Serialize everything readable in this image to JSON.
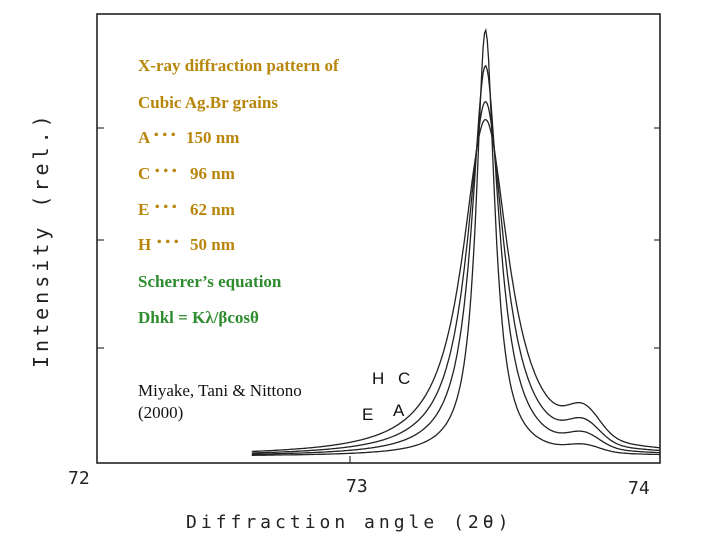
{
  "chart_data": {
    "type": "line",
    "title": "X-ray diffraction pattern of",
    "subtitle": "Cubic Ag.Br grains",
    "xlabel": "Diffraction angle (2θ)",
    "ylabel": "Intensity (rel.)",
    "x_ticks": [
      "72",
      "73",
      "74"
    ],
    "xlim": [
      72,
      74
    ],
    "ylim": [
      0,
      1
    ],
    "legend": [
      {
        "key": "A",
        "dots": "･･･",
        "value": "150 nm",
        "color": "#b8860b"
      },
      {
        "key": "C",
        "dots": "･･･",
        "value": "96 nm",
        "color": "#b8860b"
      },
      {
        "key": "E",
        "dots": "･･･",
        "value": "62 nm",
        "color": "#b8860b"
      },
      {
        "key": "H",
        "dots": "･･･",
        "value": "50 nm",
        "color": "#b8860b"
      }
    ],
    "equation_title": "Scherrer’s equation",
    "equation": "Dhkl = Kλ/βcosθ",
    "equation_color": "#2e8b2e",
    "citation_line1": "Miyake, Tani & Nittono",
    "citation_line2": "(2000)",
    "series": [
      {
        "name": "A",
        "peak_x": 73.38,
        "peak_y": 0.95,
        "fwhm": 0.08,
        "label": "A"
      },
      {
        "name": "C",
        "peak_x": 73.38,
        "peak_y": 0.87,
        "fwhm": 0.12,
        "label": "C"
      },
      {
        "name": "E",
        "peak_x": 73.38,
        "peak_y": 0.79,
        "fwhm": 0.16,
        "label": "E"
      },
      {
        "name": "H",
        "peak_x": 73.38,
        "peak_y": 0.75,
        "fwhm": 0.2,
        "label": "H"
      }
    ]
  },
  "colors": {
    "title": "#b8860b",
    "equation": "#2e8b2e",
    "axis": "#222222"
  }
}
